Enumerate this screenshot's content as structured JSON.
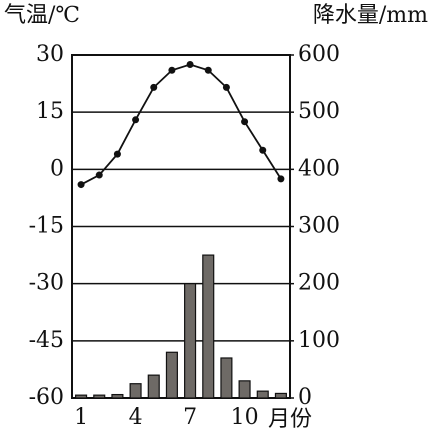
{
  "chart_data": {
    "type": "combo",
    "y_label": "气温/℃",
    "y2_label": "降水量/mm",
    "x_label": "月份",
    "categories": [
      "1",
      null,
      null,
      "4",
      null,
      null,
      "7",
      null,
      null,
      "10",
      null,
      null
    ],
    "series": [
      {
        "type": "line",
        "axis": "y",
        "color": "#111111",
        "values": [
          -4,
          -1.5,
          4,
          13,
          21.5,
          26,
          27.5,
          26,
          21.5,
          12.5,
          5,
          -2.5
        ]
      },
      {
        "type": "bar",
        "axis": "y2",
        "color": "#6e6a66",
        "values": [
          5,
          5,
          6,
          25,
          40,
          80,
          200,
          250,
          70,
          30,
          12,
          8
        ]
      }
    ],
    "ylim": [
      -60,
      30
    ],
    "yticks": [
      -60,
      -45,
      -30,
      -15,
      0,
      15,
      30
    ],
    "y2lim": [
      0,
      600
    ],
    "y2ticks": [
      0,
      100,
      200,
      300,
      400,
      500,
      600
    ],
    "grid": true
  }
}
